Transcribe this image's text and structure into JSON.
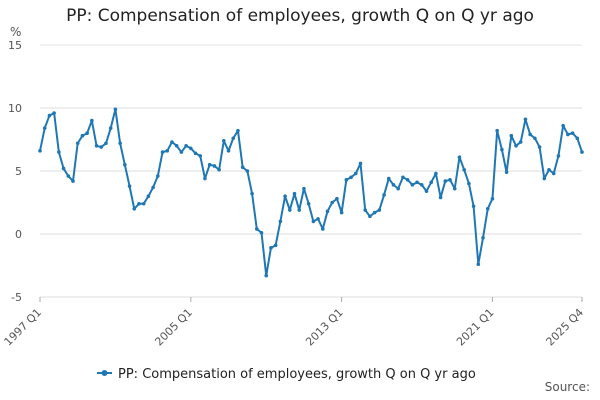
{
  "chart_data": {
    "type": "line",
    "title": "PP: Compensation of employees, growth Q on Q yr ago",
    "ylabel": "%",
    "ylim": [
      -5,
      15
    ],
    "yticks": [
      -5,
      0,
      5,
      10,
      15
    ],
    "grid": true,
    "legend_position": "bottom",
    "source_label": "Source:",
    "xtick_labels": [
      "1997 Q1",
      "2005 Q1",
      "2013 Q1",
      "2021 Q1",
      "2025 Q4"
    ],
    "xtick_indices": [
      0,
      32,
      64,
      96,
      115
    ],
    "series": [
      {
        "name": "PP: Compensation of employees, growth Q on Q yr ago",
        "color": "#1f78b4",
        "x_start": "1997 Q1",
        "x_end": "2025 Q4",
        "values": [
          6.6,
          8.4,
          9.4,
          9.6,
          6.5,
          5.2,
          4.6,
          4.2,
          7.2,
          7.8,
          8.0,
          9.0,
          7.0,
          6.9,
          7.2,
          8.4,
          9.9,
          7.2,
          5.5,
          3.8,
          2.0,
          2.4,
          2.4,
          3.0,
          3.7,
          4.6,
          6.5,
          6.6,
          7.3,
          7.0,
          6.5,
          7.0,
          6.8,
          6.4,
          6.2,
          4.4,
          5.5,
          5.4,
          5.1,
          7.4,
          6.6,
          7.6,
          8.2,
          5.3,
          5.0,
          3.2,
          0.4,
          0.1,
          -3.3,
          -1.1,
          -0.9,
          1.0,
          3.0,
          1.9,
          3.2,
          1.9,
          3.6,
          2.4,
          1.0,
          1.2,
          0.4,
          1.8,
          2.5,
          2.8,
          1.7,
          4.3,
          4.5,
          4.8,
          5.6,
          1.9,
          1.4,
          1.7,
          1.9,
          3.1,
          4.4,
          3.9,
          3.6,
          4.5,
          4.3,
          3.9,
          4.1,
          3.9,
          3.4,
          4.1,
          4.8,
          2.9,
          4.2,
          4.3,
          3.6,
          6.1,
          5.1,
          4.0,
          2.2,
          -2.4,
          -0.3,
          2.0,
          2.8,
          8.2,
          6.7,
          4.9,
          7.8,
          7.0,
          7.3,
          9.1,
          7.9,
          7.6,
          6.9,
          4.4,
          5.1,
          4.8,
          6.2,
          8.6,
          7.9,
          8.0,
          7.6,
          6.5
        ]
      }
    ]
  }
}
